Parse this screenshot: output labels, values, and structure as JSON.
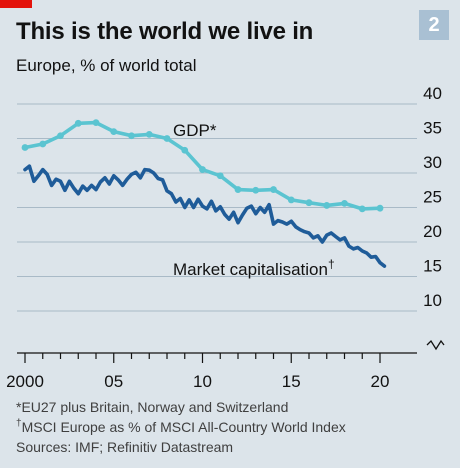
{
  "badge": "2",
  "chart_data": {
    "type": "line",
    "title": "This is the world we live in",
    "subtitle": "Europe, % of world total",
    "y_range": [
      10,
      40
    ],
    "y_ticks": [
      "40",
      "35",
      "30",
      "25",
      "20",
      "15",
      "10"
    ],
    "x_range": [
      2000,
      2020.5
    ],
    "x_ticks": [
      {
        "value": 2000,
        "label": "2000"
      },
      {
        "value": 2005,
        "label": "05"
      },
      {
        "value": 2010,
        "label": "10"
      },
      {
        "value": 2015,
        "label": "15"
      },
      {
        "value": 2020,
        "label": "20"
      }
    ],
    "y_axis_break": true,
    "grid": "horizontal",
    "colors": {
      "gdp": "#5bc4d1",
      "market": "#1f5c99",
      "grid": "#a9bac7",
      "axis": "#121212"
    },
    "series": [
      {
        "name": "GDP*",
        "key": "gdp",
        "x": [
          2000,
          2001,
          2002,
          2003,
          2004,
          2005,
          2006,
          2007,
          2008,
          2009,
          2010,
          2011,
          2012,
          2013,
          2014,
          2015,
          2016,
          2017,
          2018,
          2019,
          2020
        ],
        "y": [
          33.7,
          34.2,
          35.4,
          37.2,
          37.3,
          36.0,
          35.4,
          35.6,
          35.0,
          33.3,
          30.5,
          29.6,
          27.6,
          27.5,
          27.6,
          26.1,
          25.7,
          25.3,
          25.6,
          24.8,
          24.9
        ]
      },
      {
        "name": "Market capitalisation†",
        "key": "market",
        "x": [
          2000,
          2000.25,
          2000.5,
          2000.75,
          2001,
          2001.25,
          2001.5,
          2001.75,
          2002,
          2002.25,
          2002.5,
          2002.75,
          2003,
          2003.25,
          2003.5,
          2003.75,
          2004,
          2004.25,
          2004.5,
          2004.75,
          2005,
          2005.25,
          2005.5,
          2005.75,
          2006,
          2006.25,
          2006.5,
          2006.75,
          2007,
          2007.25,
          2007.5,
          2007.75,
          2008,
          2008.25,
          2008.5,
          2008.75,
          2009,
          2009.25,
          2009.5,
          2009.75,
          2010,
          2010.25,
          2010.5,
          2010.75,
          2011,
          2011.25,
          2011.5,
          2011.75,
          2012,
          2012.25,
          2012.5,
          2012.75,
          2013,
          2013.25,
          2013.5,
          2013.75,
          2014,
          2014.25,
          2014.5,
          2014.75,
          2015,
          2015.25,
          2015.5,
          2015.75,
          2016,
          2016.25,
          2016.5,
          2016.75,
          2017,
          2017.25,
          2017.5,
          2017.75,
          2018,
          2018.25,
          2018.5,
          2018.75,
          2019,
          2019.25,
          2019.5,
          2019.75,
          2020,
          2020.25
        ],
        "y": [
          30.5,
          31.0,
          28.8,
          29.6,
          30.5,
          29.8,
          28.2,
          29.1,
          28.8,
          27.5,
          28.8,
          27.8,
          27.0,
          28.1,
          27.5,
          28.2,
          27.6,
          28.7,
          29.3,
          28.4,
          29.6,
          29.0,
          28.2,
          29.1,
          29.8,
          30.1,
          29.3,
          30.5,
          30.4,
          30.0,
          29.2,
          29.0,
          27.4,
          27.0,
          25.8,
          26.3,
          25.0,
          26.1,
          25.0,
          26.2,
          25.2,
          24.8,
          25.9,
          24.5,
          25.1,
          24.0,
          23.3,
          24.3,
          22.8,
          23.9,
          24.9,
          25.2,
          24.1,
          25.0,
          24.3,
          25.4,
          22.6,
          23.1,
          22.9,
          22.6,
          23.0,
          22.2,
          21.8,
          21.5,
          21.3,
          20.6,
          20.9,
          20.0,
          21.0,
          21.3,
          20.8,
          20.3,
          20.6,
          19.4,
          19.0,
          19.2,
          18.7,
          18.4,
          17.8,
          17.9,
          17.0,
          16.5
        ]
      }
    ],
    "annotations": {
      "gdp_label": "GDP*",
      "market_label": "Market capitalisation",
      "market_mark": "†"
    }
  },
  "footnotes": {
    "note1": "*EU27 plus Britain, Norway and Switzerland",
    "note2_mark": "†",
    "note2": "MSCI Europe as % of MSCI All-Country World Index",
    "sources": "Sources: IMF; Refinitiv Datastream"
  }
}
